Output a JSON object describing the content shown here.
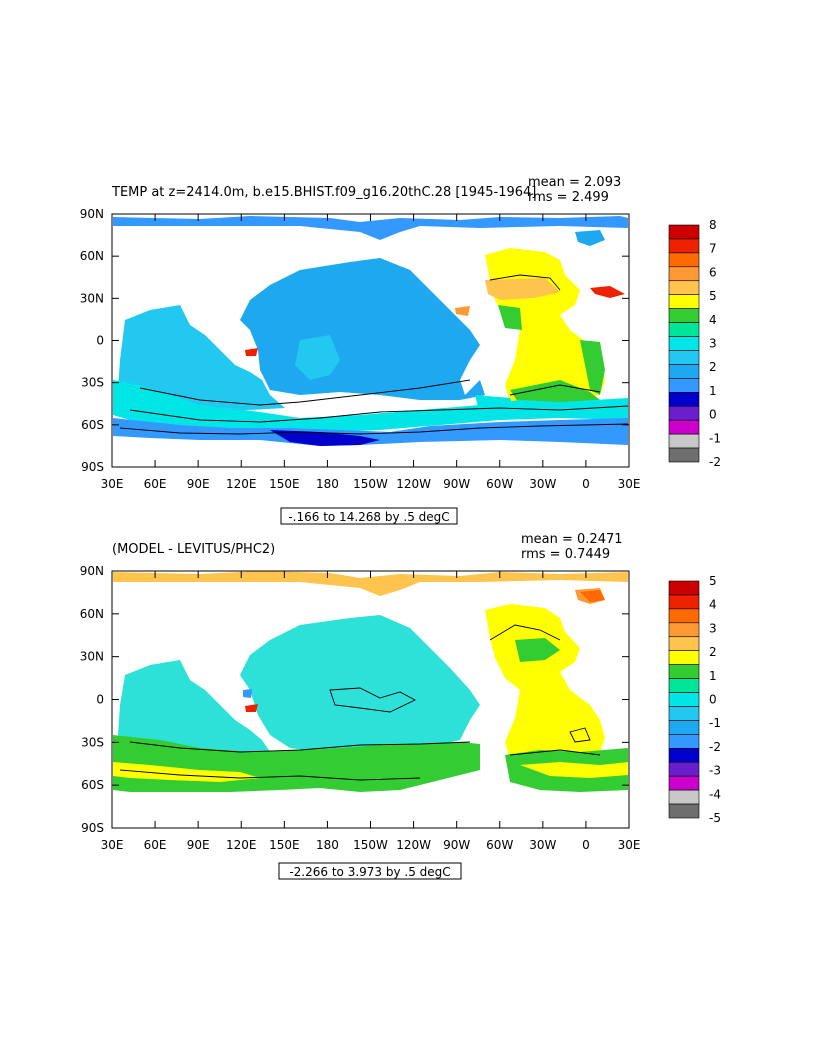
{
  "top_panel": {
    "title": "TEMP at z=2414.0m, b.e15.BHIST.f09_g16.20thC.28 [1945-1964]",
    "mean": "mean = 2.093",
    "rms": "rms = 2.499",
    "range_label": "-.166 to 14.268 by .5 degC",
    "colorbar_labels": [
      "8",
      "7",
      "6",
      "5",
      "4",
      "3",
      "2",
      "1",
      "0",
      "-1",
      "-2"
    ],
    "colorbar_colors": [
      "#cc0000",
      "#ee2200",
      "#ff6a00",
      "#ff9933",
      "#ffc44d",
      "#ffff00",
      "#33cc33",
      "#00e699",
      "#00e6e6",
      "#22c8f0",
      "#1ea8f0",
      "#3399ff",
      "#0000cc",
      "#6a1fcf",
      "#cc00cc",
      "#c8c8c8",
      "#6e6e6e"
    ]
  },
  "bottom_panel": {
    "title": "(MODEL - LEVITUS/PHC2)",
    "mean": "mean = 0.2471",
    "rms": "rms = 0.7449",
    "range_label": "-2.266 to 3.973 by .5 degC",
    "colorbar_labels": [
      "5",
      "4",
      "3",
      "2",
      "1",
      "0",
      "-1",
      "-2",
      "-3",
      "-4",
      "-5"
    ],
    "colorbar_colors": [
      "#cc0000",
      "#ee2200",
      "#ff6a00",
      "#ff9933",
      "#ffc44d",
      "#ffff00",
      "#33cc33",
      "#00e699",
      "#00e6e6",
      "#22c8f0",
      "#1ea8f0",
      "#3399ff",
      "#0000cc",
      "#6a1fcf",
      "#cc00cc",
      "#c8c8c8",
      "#6e6e6e"
    ]
  },
  "axes": {
    "lat_labels": [
      "90N",
      "60N",
      "30N",
      "0",
      "30S",
      "60S",
      "90S"
    ],
    "lon_labels": [
      "30E",
      "60E",
      "90E",
      "120E",
      "150E",
      "180",
      "150W",
      "120W",
      "90W",
      "60W",
      "30W",
      "0",
      "30E"
    ]
  },
  "colors": {
    "land": "#ffffff",
    "ocean_top_main": "#22b4f0",
    "ocean_bottom_main": "#2de0d8"
  }
}
